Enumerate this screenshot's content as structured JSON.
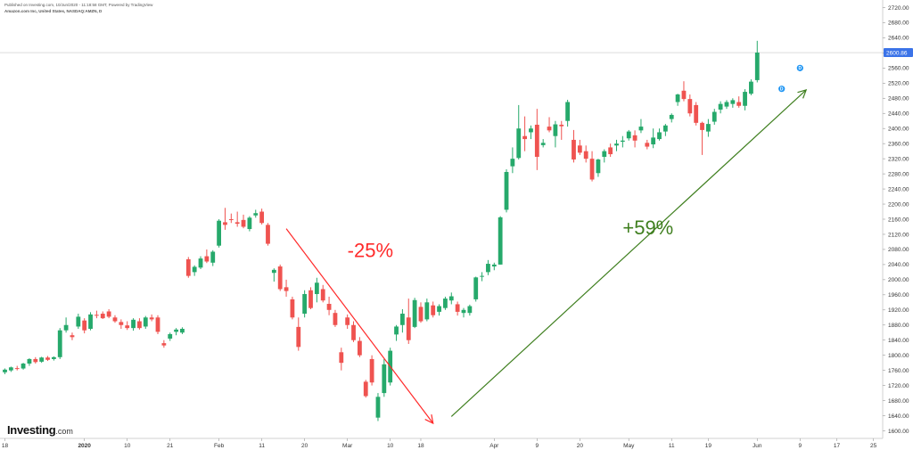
{
  "header": {
    "published": "Published on Investing.com, 10/Jun/2020 - 11:18:58 GMT, Powered by TradingView",
    "symbol": "Amazon.com Inc, United States, NASDAQ:AMZN, D"
  },
  "logo": {
    "brand": "Investing",
    "domain": ".com"
  },
  "colors": {
    "up": "#26a96b",
    "down": "#ef5350",
    "down_arrow": "#ff2a2a",
    "up_arrow": "#3f7f1f",
    "price_tag": "#3b73e8",
    "dividend": "#2196f3"
  },
  "chart_data": {
    "type": "candlestick",
    "title": "Amazon.com Inc, United States, NASDAQ:AMZN, D",
    "ylim": [
      1580,
      2740
    ],
    "y_ticks": [
      1600,
      1640,
      1680,
      1720,
      1760,
      1800,
      1840,
      1880,
      1920,
      1960,
      2000,
      2040,
      2080,
      2120,
      2160,
      2200,
      2240,
      2280,
      2320,
      2360,
      2400,
      2440,
      2480,
      2520,
      2560,
      2600,
      2640,
      2680,
      2720
    ],
    "y_tick_labels": [
      "1600.00",
      "1640.00",
      "1680.00",
      "1720.00",
      "1760.00",
      "1800.00",
      "1840.00",
      "1880.00",
      "1920.00",
      "1960.00",
      "2000.00",
      "2040.00",
      "2080.00",
      "2120.00",
      "2160.00",
      "2200.00",
      "2240.00",
      "2280.00",
      "2320.00",
      "2360.00",
      "2400.00",
      "2440.00",
      "2480.00",
      "2520.00",
      "2560.00",
      "2600.00",
      "2640.00",
      "2680.00",
      "2720.00"
    ],
    "x_ticks": [
      "18",
      "2020",
      "10",
      "21",
      "Feb",
      "11",
      "20",
      "Mar",
      "10",
      "18",
      "Apr",
      "9",
      "20",
      "May",
      "11",
      "19",
      "Jun",
      "9",
      "17",
      "25"
    ],
    "x_tick_index": [
      0,
      13,
      20,
      27,
      35,
      42,
      49,
      56,
      63,
      68,
      80,
      87,
      94,
      102,
      109,
      115,
      123,
      130,
      136,
      142
    ],
    "x_tick_bold": [
      false,
      true,
      false,
      false,
      false,
      false,
      false,
      false,
      false,
      false,
      false,
      false,
      false,
      false,
      false,
      false,
      false,
      false,
      false,
      false
    ],
    "last_price": 2600.86,
    "last_price_label": "2600.86",
    "candles": [
      {
        "o": 1755,
        "h": 1765,
        "l": 1750,
        "c": 1762
      },
      {
        "o": 1760,
        "h": 1770,
        "l": 1756,
        "c": 1768
      },
      {
        "o": 1766,
        "h": 1772,
        "l": 1760,
        "c": 1764
      },
      {
        "o": 1765,
        "h": 1780,
        "l": 1762,
        "c": 1778
      },
      {
        "o": 1778,
        "h": 1792,
        "l": 1772,
        "c": 1790
      },
      {
        "o": 1790,
        "h": 1795,
        "l": 1778,
        "c": 1782
      },
      {
        "o": 1783,
        "h": 1796,
        "l": 1780,
        "c": 1794
      },
      {
        "o": 1794,
        "h": 1798,
        "l": 1785,
        "c": 1788
      },
      {
        "o": 1790,
        "h": 1797,
        "l": 1786,
        "c": 1795
      },
      {
        "o": 1795,
        "h": 1872,
        "l": 1790,
        "c": 1866
      },
      {
        "o": 1866,
        "h": 1900,
        "l": 1860,
        "c": 1880
      },
      {
        "o": 1853,
        "h": 1860,
        "l": 1840,
        "c": 1848
      },
      {
        "o": 1876,
        "h": 1910,
        "l": 1870,
        "c": 1902
      },
      {
        "o": 1892,
        "h": 1898,
        "l": 1858,
        "c": 1866
      },
      {
        "o": 1870,
        "h": 1914,
        "l": 1866,
        "c": 1908
      },
      {
        "o": 1907,
        "h": 1918,
        "l": 1898,
        "c": 1906
      },
      {
        "o": 1910,
        "h": 1916,
        "l": 1896,
        "c": 1898
      },
      {
        "o": 1916,
        "h": 1922,
        "l": 1898,
        "c": 1902
      },
      {
        "o": 1900,
        "h": 1906,
        "l": 1886,
        "c": 1890
      },
      {
        "o": 1888,
        "h": 1895,
        "l": 1870,
        "c": 1880
      },
      {
        "o": 1879,
        "h": 1890,
        "l": 1867,
        "c": 1872
      },
      {
        "o": 1872,
        "h": 1898,
        "l": 1865,
        "c": 1894
      },
      {
        "o": 1890,
        "h": 1898,
        "l": 1868,
        "c": 1872
      },
      {
        "o": 1876,
        "h": 1904,
        "l": 1870,
        "c": 1900
      },
      {
        "o": 1900,
        "h": 1908,
        "l": 1890,
        "c": 1895
      },
      {
        "o": 1900,
        "h": 1906,
        "l": 1856,
        "c": 1862
      },
      {
        "o": 1832,
        "h": 1840,
        "l": 1820,
        "c": 1826
      },
      {
        "o": 1844,
        "h": 1860,
        "l": 1838,
        "c": 1856
      },
      {
        "o": 1862,
        "h": 1872,
        "l": 1853,
        "c": 1868
      },
      {
        "o": 1860,
        "h": 1874,
        "l": 1856,
        "c": 1870
      },
      {
        "o": 2054,
        "h": 2060,
        "l": 2005,
        "c": 2010
      },
      {
        "o": 2020,
        "h": 2038,
        "l": 2010,
        "c": 2034
      },
      {
        "o": 2032,
        "h": 2062,
        "l": 2028,
        "c": 2056
      },
      {
        "o": 2062,
        "h": 2080,
        "l": 2044,
        "c": 2048
      },
      {
        "o": 2045,
        "h": 2078,
        "l": 2036,
        "c": 2074
      },
      {
        "o": 2090,
        "h": 2160,
        "l": 2085,
        "c": 2156
      },
      {
        "o": 2152,
        "h": 2190,
        "l": 2132,
        "c": 2145
      },
      {
        "o": 2160,
        "h": 2175,
        "l": 2150,
        "c": 2158
      },
      {
        "o": 2152,
        "h": 2180,
        "l": 2140,
        "c": 2148
      },
      {
        "o": 2158,
        "h": 2172,
        "l": 2136,
        "c": 2140
      },
      {
        "o": 2134,
        "h": 2168,
        "l": 2128,
        "c": 2164
      },
      {
        "o": 2170,
        "h": 2185,
        "l": 2164,
        "c": 2176
      },
      {
        "o": 2180,
        "h": 2188,
        "l": 2146,
        "c": 2150
      },
      {
        "o": 2145,
        "h": 2150,
        "l": 2090,
        "c": 2095
      },
      {
        "o": 2018,
        "h": 2030,
        "l": 1995,
        "c": 2026
      },
      {
        "o": 2035,
        "h": 2040,
        "l": 1970,
        "c": 1975
      },
      {
        "o": 1980,
        "h": 2000,
        "l": 1955,
        "c": 1970
      },
      {
        "o": 1948,
        "h": 1955,
        "l": 1895,
        "c": 1900
      },
      {
        "o": 1875,
        "h": 1900,
        "l": 1812,
        "c": 1822
      },
      {
        "o": 1910,
        "h": 1972,
        "l": 1900,
        "c": 1962
      },
      {
        "o": 1972,
        "h": 1980,
        "l": 1922,
        "c": 1925
      },
      {
        "o": 1962,
        "h": 2005,
        "l": 1940,
        "c": 1992
      },
      {
        "o": 1975,
        "h": 1986,
        "l": 1940,
        "c": 1945
      },
      {
        "o": 1936,
        "h": 1955,
        "l": 1906,
        "c": 1920
      },
      {
        "o": 1912,
        "h": 1920,
        "l": 1875,
        "c": 1880
      },
      {
        "o": 1808,
        "h": 1820,
        "l": 1760,
        "c": 1780
      },
      {
        "o": 1900,
        "h": 1908,
        "l": 1870,
        "c": 1880
      },
      {
        "o": 1880,
        "h": 1890,
        "l": 1835,
        "c": 1840
      },
      {
        "o": 1838,
        "h": 1848,
        "l": 1795,
        "c": 1800
      },
      {
        "o": 1730,
        "h": 1735,
        "l": 1688,
        "c": 1692
      },
      {
        "o": 1790,
        "h": 1800,
        "l": 1720,
        "c": 1728
      },
      {
        "o": 1635,
        "h": 1700,
        "l": 1626,
        "c": 1690
      },
      {
        "o": 1700,
        "h": 1790,
        "l": 1690,
        "c": 1776
      },
      {
        "o": 1728,
        "h": 1820,
        "l": 1720,
        "c": 1812
      },
      {
        "o": 1855,
        "h": 1880,
        "l": 1838,
        "c": 1876
      },
      {
        "o": 1880,
        "h": 1922,
        "l": 1860,
        "c": 1910
      },
      {
        "o": 1900,
        "h": 1950,
        "l": 1830,
        "c": 1840
      },
      {
        "o": 1875,
        "h": 1952,
        "l": 1872,
        "c": 1946
      },
      {
        "o": 1928,
        "h": 1940,
        "l": 1886,
        "c": 1890
      },
      {
        "o": 1895,
        "h": 1950,
        "l": 1890,
        "c": 1940
      },
      {
        "o": 1932,
        "h": 1942,
        "l": 1900,
        "c": 1906
      },
      {
        "o": 1915,
        "h": 1935,
        "l": 1905,
        "c": 1930
      },
      {
        "o": 1925,
        "h": 1955,
        "l": 1920,
        "c": 1950
      },
      {
        "o": 1945,
        "h": 1966,
        "l": 1935,
        "c": 1956
      },
      {
        "o": 1935,
        "h": 1942,
        "l": 1905,
        "c": 1915
      },
      {
        "o": 1912,
        "h": 1925,
        "l": 1900,
        "c": 1920
      },
      {
        "o": 1912,
        "h": 1934,
        "l": 1905,
        "c": 1930
      },
      {
        "o": 1948,
        "h": 2008,
        "l": 1942,
        "c": 2006
      },
      {
        "o": 2008,
        "h": 2020,
        "l": 1996,
        "c": 2010
      },
      {
        "o": 2020,
        "h": 2052,
        "l": 2012,
        "c": 2042
      },
      {
        "o": 2035,
        "h": 2045,
        "l": 2025,
        "c": 2040
      },
      {
        "o": 2040,
        "h": 2168,
        "l": 2040,
        "c": 2165
      },
      {
        "o": 2185,
        "h": 2292,
        "l": 2178,
        "c": 2285
      },
      {
        "o": 2300,
        "h": 2350,
        "l": 2282,
        "c": 2320
      },
      {
        "o": 2322,
        "h": 2462,
        "l": 2318,
        "c": 2400
      },
      {
        "o": 2380,
        "h": 2432,
        "l": 2340,
        "c": 2372
      },
      {
        "o": 2390,
        "h": 2408,
        "l": 2372,
        "c": 2400
      },
      {
        "o": 2410,
        "h": 2452,
        "l": 2290,
        "c": 2325
      },
      {
        "o": 2356,
        "h": 2372,
        "l": 2350,
        "c": 2362
      },
      {
        "o": 2405,
        "h": 2430,
        "l": 2390,
        "c": 2395
      },
      {
        "o": 2380,
        "h": 2420,
        "l": 2350,
        "c": 2411
      },
      {
        "o": 2410,
        "h": 2420,
        "l": 2370,
        "c": 2406
      },
      {
        "o": 2420,
        "h": 2476,
        "l": 2405,
        "c": 2470
      },
      {
        "o": 2370,
        "h": 2396,
        "l": 2310,
        "c": 2318
      },
      {
        "o": 2355,
        "h": 2370,
        "l": 2330,
        "c": 2336
      },
      {
        "o": 2340,
        "h": 2355,
        "l": 2310,
        "c": 2320
      },
      {
        "o": 2320,
        "h": 2340,
        "l": 2260,
        "c": 2265
      },
      {
        "o": 2282,
        "h": 2320,
        "l": 2272,
        "c": 2318
      },
      {
        "o": 2325,
        "h": 2345,
        "l": 2310,
        "c": 2340
      },
      {
        "o": 2350,
        "h": 2360,
        "l": 2325,
        "c": 2332
      },
      {
        "o": 2355,
        "h": 2370,
        "l": 2340,
        "c": 2360
      },
      {
        "o": 2365,
        "h": 2380,
        "l": 2350,
        "c": 2368
      },
      {
        "o": 2374,
        "h": 2396,
        "l": 2368,
        "c": 2392
      },
      {
        "o": 2382,
        "h": 2395,
        "l": 2350,
        "c": 2368
      },
      {
        "o": 2395,
        "h": 2425,
        "l": 2388,
        "c": 2405
      },
      {
        "o": 2362,
        "h": 2370,
        "l": 2345,
        "c": 2352
      },
      {
        "o": 2358,
        "h": 2400,
        "l": 2348,
        "c": 2376
      },
      {
        "o": 2372,
        "h": 2400,
        "l": 2368,
        "c": 2390
      },
      {
        "o": 2392,
        "h": 2412,
        "l": 2380,
        "c": 2408
      },
      {
        "o": 2425,
        "h": 2440,
        "l": 2416,
        "c": 2436
      },
      {
        "o": 2470,
        "h": 2492,
        "l": 2460,
        "c": 2490
      },
      {
        "o": 2500,
        "h": 2525,
        "l": 2472,
        "c": 2478
      },
      {
        "o": 2478,
        "h": 2490,
        "l": 2432,
        "c": 2440
      },
      {
        "o": 2462,
        "h": 2470,
        "l": 2408,
        "c": 2415
      },
      {
        "o": 2415,
        "h": 2418,
        "l": 2330,
        "c": 2396
      },
      {
        "o": 2392,
        "h": 2425,
        "l": 2378,
        "c": 2412
      },
      {
        "o": 2418,
        "h": 2452,
        "l": 2410,
        "c": 2444
      },
      {
        "o": 2450,
        "h": 2472,
        "l": 2440,
        "c": 2465
      },
      {
        "o": 2458,
        "h": 2475,
        "l": 2452,
        "c": 2470
      },
      {
        "o": 2465,
        "h": 2480,
        "l": 2455,
        "c": 2475
      },
      {
        "o": 2470,
        "h": 2485,
        "l": 2455,
        "c": 2460
      },
      {
        "o": 2460,
        "h": 2504,
        "l": 2448,
        "c": 2497
      },
      {
        "o": 2492,
        "h": 2530,
        "l": 2488,
        "c": 2524
      },
      {
        "o": 2528,
        "h": 2632,
        "l": 2522,
        "c": 2600.86
      }
    ],
    "annotations": [
      {
        "text": "-25%",
        "color": "#ff2a2a",
        "x_index": 56,
        "y": 2060
      },
      {
        "text": "+59%",
        "color": "#3f7f1f",
        "x_index": 101,
        "y": 2120
      }
    ],
    "trend_lines": [
      {
        "name": "decline",
        "from": {
          "x_index": 46,
          "y": 2135
        },
        "to": {
          "x_index": 70,
          "y": 1620
        },
        "color": "#ff2a2a"
      },
      {
        "name": "rally",
        "from": {
          "x_index": 73,
          "y": 1638
        },
        "to": {
          "x_index": 131,
          "y": 2502
        },
        "color": "#3f7f1f"
      }
    ],
    "dividend_markers": [
      {
        "text": "D",
        "x_index": 127,
        "y": 2505
      },
      {
        "text": "D",
        "x_index": 130,
        "y": 2560
      }
    ]
  }
}
